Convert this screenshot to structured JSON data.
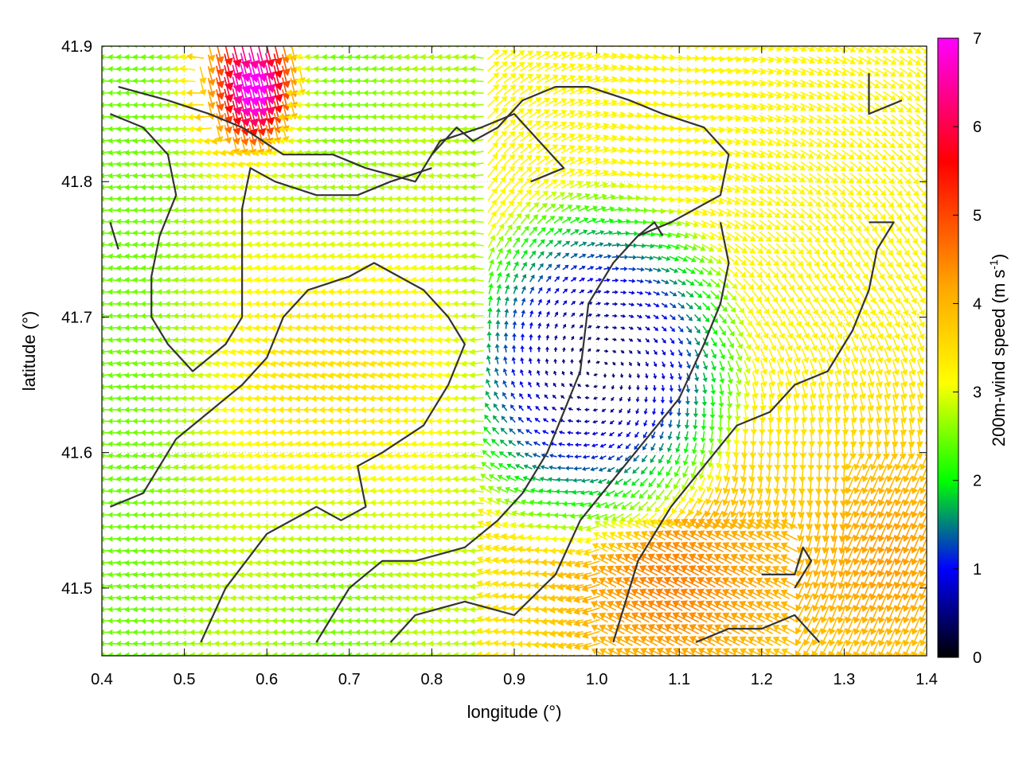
{
  "chart_data": {
    "type": "vector-field",
    "title": "",
    "xlabel": "longitude (°)",
    "ylabel": "latitude (°)",
    "xlim": [
      0.4,
      1.4
    ],
    "ylim": [
      41.45,
      41.9
    ],
    "x_ticks": [
      0.4,
      0.5,
      0.6,
      0.7,
      0.8,
      0.9,
      1.0,
      1.1,
      1.2,
      1.3,
      1.4
    ],
    "x_tick_labels": [
      "0.4",
      "0.5",
      "0.6",
      "0.7",
      "0.8",
      "0.9",
      "1.0",
      "1.1",
      "1.2",
      "1.3",
      "1.4"
    ],
    "y_ticks": [
      41.5,
      41.6,
      41.7,
      41.8,
      41.9
    ],
    "y_tick_labels": [
      "41.5",
      "41.6",
      "41.7",
      "41.8",
      "41.9"
    ],
    "colorbar": {
      "label": "200m-wind speed (m s",
      "label_sup": "-1",
      "label_close": ")",
      "range": [
        0,
        7
      ],
      "ticks": [
        0,
        1,
        2,
        3,
        4,
        5,
        6,
        7
      ],
      "tick_labels": [
        "0",
        "1",
        "2",
        "3",
        "4",
        "5",
        "6",
        "7"
      ],
      "palette": [
        "#000000",
        "#0000ff",
        "#00ff00",
        "#ffff00",
        "#ffa500",
        "#ff0000",
        "#ff00ff"
      ],
      "palette_values": [
        0,
        1,
        2,
        3.1,
        4.2,
        5.6,
        7
      ]
    },
    "grid": "dotted",
    "wind_centers": [
      {
        "lon": 1.0,
        "lat": 41.66,
        "min_speed": 0.3
      },
      {
        "lon": 0.69,
        "lat": 41.66,
        "max_speed": 3.6
      },
      {
        "lon": 0.58,
        "lat": 41.88,
        "max_speed": 7.0
      }
    ],
    "contours": [
      [
        [
          0.42,
          41.87
        ],
        [
          0.48,
          41.86
        ],
        [
          0.53,
          41.85
        ],
        [
          0.57,
          41.84
        ],
        [
          0.62,
          41.82
        ],
        [
          0.68,
          41.82
        ],
        [
          0.72,
          41.81
        ],
        [
          0.78,
          41.8
        ],
        [
          0.81,
          41.83
        ],
        [
          0.86,
          41.84
        ],
        [
          0.9,
          41.85
        ],
        [
          0.93,
          41.83
        ],
        [
          0.96,
          41.81
        ],
        [
          0.92,
          41.8
        ]
      ],
      [
        [
          0.41,
          41.85
        ],
        [
          0.45,
          41.84
        ],
        [
          0.48,
          41.82
        ],
        [
          0.49,
          41.79
        ],
        [
          0.47,
          41.76
        ],
        [
          0.46,
          41.73
        ],
        [
          0.46,
          41.7
        ],
        [
          0.48,
          41.68
        ],
        [
          0.51,
          41.66
        ],
        [
          0.55,
          41.68
        ],
        [
          0.57,
          41.7
        ],
        [
          0.57,
          41.74
        ],
        [
          0.57,
          41.78
        ],
        [
          0.58,
          41.81
        ],
        [
          0.61,
          41.8
        ],
        [
          0.66,
          41.79
        ],
        [
          0.71,
          41.79
        ],
        [
          0.75,
          41.8
        ],
        [
          0.8,
          41.81
        ]
      ],
      [
        [
          0.41,
          41.56
        ],
        [
          0.45,
          41.57
        ],
        [
          0.49,
          41.61
        ],
        [
          0.53,
          41.63
        ],
        [
          0.57,
          41.65
        ],
        [
          0.6,
          41.67
        ],
        [
          0.62,
          41.7
        ],
        [
          0.65,
          41.72
        ],
        [
          0.7,
          41.73
        ],
        [
          0.73,
          41.74
        ],
        [
          0.76,
          41.73
        ],
        [
          0.79,
          41.72
        ],
        [
          0.82,
          41.7
        ],
        [
          0.84,
          41.68
        ],
        [
          0.82,
          41.65
        ],
        [
          0.79,
          41.62
        ],
        [
          0.74,
          41.6
        ],
        [
          0.71,
          41.59
        ],
        [
          0.72,
          41.56
        ],
        [
          0.69,
          41.55
        ],
        [
          0.66,
          41.56
        ],
        [
          0.6,
          41.54
        ],
        [
          0.55,
          41.5
        ],
        [
          0.52,
          41.46
        ]
      ],
      [
        [
          0.66,
          41.46
        ],
        [
          0.7,
          41.5
        ],
        [
          0.74,
          41.52
        ],
        [
          0.78,
          41.52
        ],
        [
          0.84,
          41.53
        ],
        [
          0.88,
          41.55
        ],
        [
          0.91,
          41.57
        ],
        [
          0.94,
          41.6
        ],
        [
          0.96,
          41.63
        ],
        [
          0.98,
          41.66
        ],
        [
          0.99,
          41.71
        ],
        [
          1.02,
          41.74
        ],
        [
          1.05,
          41.76
        ],
        [
          1.09,
          41.77
        ],
        [
          1.15,
          41.79
        ],
        [
          1.16,
          41.82
        ],
        [
          1.13,
          41.84
        ],
        [
          1.08,
          41.85
        ],
        [
          1.04,
          41.86
        ],
        [
          0.99,
          41.87
        ],
        [
          0.95,
          41.87
        ],
        [
          0.91,
          41.86
        ],
        [
          0.88,
          41.84
        ],
        [
          0.85,
          41.83
        ],
        [
          0.83,
          41.84
        ],
        [
          0.8,
          41.82
        ]
      ],
      [
        [
          0.75,
          41.46
        ],
        [
          0.78,
          41.48
        ],
        [
          0.84,
          41.49
        ],
        [
          0.9,
          41.48
        ],
        [
          0.95,
          41.51
        ],
        [
          0.98,
          41.55
        ],
        [
          1.02,
          41.58
        ],
        [
          1.06,
          41.61
        ],
        [
          1.1,
          41.64
        ],
        [
          1.13,
          41.68
        ],
        [
          1.15,
          41.71
        ],
        [
          1.16,
          41.74
        ],
        [
          1.15,
          41.77
        ]
      ],
      [
        [
          1.02,
          41.46
        ],
        [
          1.05,
          41.52
        ],
        [
          1.09,
          41.56
        ],
        [
          1.13,
          41.59
        ],
        [
          1.17,
          41.62
        ],
        [
          1.21,
          41.63
        ],
        [
          1.24,
          41.65
        ],
        [
          1.28,
          41.66
        ],
        [
          1.31,
          41.69
        ],
        [
          1.33,
          41.72
        ],
        [
          1.34,
          41.75
        ],
        [
          1.36,
          41.77
        ],
        [
          1.33,
          41.77
        ]
      ],
      [
        [
          1.12,
          41.46
        ],
        [
          1.16,
          41.47
        ],
        [
          1.2,
          41.47
        ],
        [
          1.24,
          41.48
        ],
        [
          1.27,
          41.46
        ]
      ],
      [
        [
          1.2,
          41.51
        ],
        [
          1.24,
          41.51
        ],
        [
          1.25,
          41.53
        ],
        [
          1.26,
          41.52
        ],
        [
          1.24,
          41.5
        ]
      ],
      [
        [
          1.33,
          41.88
        ],
        [
          1.33,
          41.85
        ],
        [
          1.37,
          41.86
        ]
      ],
      [
        [
          0.41,
          41.77
        ],
        [
          0.42,
          41.75
        ]
      ],
      [
        [
          1.05,
          41.76
        ],
        [
          1.07,
          41.77
        ],
        [
          1.08,
          41.76
        ]
      ]
    ]
  }
}
